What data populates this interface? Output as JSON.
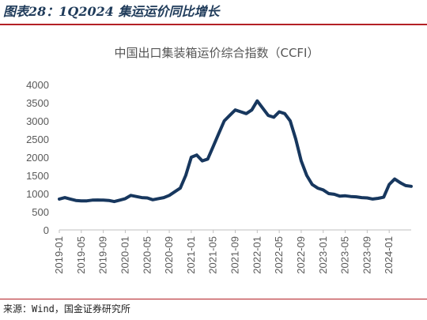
{
  "figure": {
    "caption": "图表28：1Q2024 集运运价同比增长",
    "source": "来源：Wind，国金证券研究所"
  },
  "chart_data": {
    "type": "line",
    "title": "中国出口集装箱运价综合指数（CCFI）",
    "xlabel": "",
    "ylabel": "",
    "ylim": [
      0,
      4000
    ],
    "yticks": [
      0,
      500,
      1000,
      1500,
      2000,
      2500,
      3000,
      3500,
      4000
    ],
    "xticks": [
      "2019-01",
      "2019-05",
      "2019-09",
      "2020-01",
      "2020-05",
      "2020-09",
      "2021-01",
      "2021-05",
      "2021-09",
      "2022-01",
      "2022-05",
      "2022-09",
      "2023-01",
      "2023-05",
      "2023-09",
      "2024-01"
    ],
    "xrange": [
      "2019-01",
      "2024-05"
    ],
    "grid": false,
    "legend": "none",
    "color": "#17375e",
    "series": [
      {
        "x": [
          "2019-01",
          "2019-02",
          "2019-03",
          "2019-04",
          "2019-05",
          "2019-06",
          "2019-07",
          "2019-08",
          "2019-09",
          "2019-10",
          "2019-11",
          "2019-12",
          "2020-01",
          "2020-02",
          "2020-03",
          "2020-04",
          "2020-05",
          "2020-06",
          "2020-07",
          "2020-08",
          "2020-09",
          "2020-10",
          "2020-11",
          "2020-12",
          "2021-01",
          "2021-02",
          "2021-03",
          "2021-04",
          "2021-05",
          "2021-06",
          "2021-07",
          "2021-08",
          "2021-09",
          "2021-10",
          "2021-11",
          "2021-12",
          "2022-01",
          "2022-02",
          "2022-03",
          "2022-04",
          "2022-05",
          "2022-06",
          "2022-07",
          "2022-08",
          "2022-09",
          "2022-10",
          "2022-11",
          "2022-12",
          "2023-01",
          "2023-02",
          "2023-03",
          "2023-04",
          "2023-05",
          "2023-06",
          "2023-07",
          "2023-08",
          "2023-09",
          "2023-10",
          "2023-11",
          "2023-12",
          "2024-01",
          "2024-02",
          "2024-03",
          "2024-04",
          "2024-05"
        ],
        "values": [
          850,
          890,
          850,
          810,
          800,
          800,
          820,
          825,
          820,
          810,
          780,
          820,
          860,
          950,
          920,
          890,
          880,
          830,
          860,
          890,
          950,
          1050,
          1150,
          1500,
          2000,
          2060,
          1900,
          1950,
          2300,
          2650,
          3000,
          3150,
          3300,
          3250,
          3200,
          3300,
          3550,
          3350,
          3150,
          3100,
          3250,
          3200,
          3000,
          2500,
          1900,
          1500,
          1250,
          1150,
          1100,
          1000,
          980,
          930,
          940,
          920,
          910,
          890,
          880,
          850,
          870,
          900,
          1250,
          1400,
          1300,
          1220,
          1200
        ]
      }
    ]
  }
}
